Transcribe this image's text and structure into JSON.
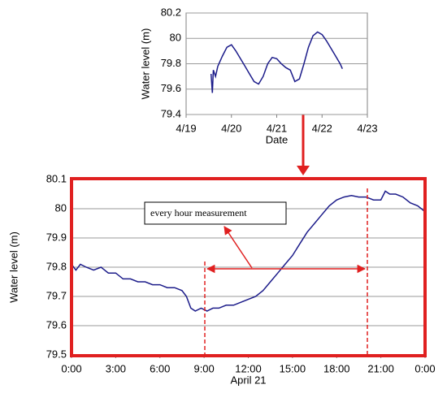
{
  "chart_data": [
    {
      "type": "line",
      "ylabel": "Water level (m)",
      "xlabel": "Date",
      "color": "#1c1c8a",
      "grid": true,
      "x": [
        19.55,
        19.58,
        19.6,
        19.65,
        19.7,
        19.8,
        19.9,
        20.0,
        20.1,
        20.2,
        20.3,
        20.4,
        20.5,
        20.6,
        20.7,
        20.8,
        20.9,
        21.0,
        21.1,
        21.2,
        21.3,
        21.4,
        21.5,
        21.6,
        21.7,
        21.8,
        21.9,
        22.0,
        22.1,
        22.2,
        22.3,
        22.4,
        22.45
      ],
      "values": [
        79.72,
        79.57,
        79.75,
        79.7,
        79.78,
        79.86,
        79.93,
        79.95,
        79.9,
        79.84,
        79.78,
        79.72,
        79.66,
        79.64,
        79.7,
        79.8,
        79.85,
        79.84,
        79.8,
        79.77,
        79.75,
        79.66,
        79.68,
        79.8,
        79.93,
        80.02,
        80.05,
        80.03,
        79.98,
        79.92,
        79.86,
        79.8,
        79.76
      ],
      "xlim": [
        19,
        23
      ],
      "xticks": [
        {
          "value": 19,
          "label": "4/19"
        },
        {
          "value": 20,
          "label": "4/20"
        },
        {
          "value": 21,
          "label": "4/21"
        },
        {
          "value": 22,
          "label": "4/22"
        },
        {
          "value": 23,
          "label": "4/23"
        }
      ],
      "ylim": [
        79.4,
        80.2
      ],
      "yticks": [
        79.4,
        79.6,
        79.8,
        80,
        80.2
      ]
    },
    {
      "type": "line",
      "ylabel": "Water level (m)",
      "xlabel": "April 21",
      "color": "#1c1c8a",
      "grid": true,
      "annotation": "every hour measurement",
      "x": [
        0,
        0.3,
        0.6,
        1,
        1.5,
        2,
        2.5,
        3,
        3.5,
        4,
        4.5,
        5,
        5.5,
        6,
        6.5,
        7,
        7.5,
        7.8,
        8.1,
        8.4,
        8.8,
        9.2,
        9.6,
        10,
        10.5,
        11,
        11.5,
        12,
        12.5,
        13,
        13.5,
        14,
        14.5,
        15,
        15.5,
        16,
        16.5,
        17,
        17.5,
        18,
        18.5,
        19,
        19.5,
        20,
        20.5,
        21,
        21.3,
        21.6,
        22,
        22.5,
        23,
        23.5,
        24
      ],
      "values": [
        79.81,
        79.79,
        79.81,
        79.8,
        79.79,
        79.8,
        79.78,
        79.78,
        79.76,
        79.76,
        79.75,
        79.75,
        79.74,
        79.74,
        79.73,
        79.73,
        79.72,
        79.7,
        79.66,
        79.65,
        79.66,
        79.65,
        79.66,
        79.66,
        79.67,
        79.67,
        79.68,
        79.69,
        79.7,
        79.72,
        79.75,
        79.78,
        79.81,
        79.84,
        79.88,
        79.92,
        79.95,
        79.98,
        80.01,
        80.03,
        80.04,
        80.045,
        80.04,
        80.04,
        80.03,
        80.03,
        80.06,
        80.05,
        80.05,
        80.04,
        80.02,
        80.01,
        79.99
      ],
      "xlim": [
        0,
        24
      ],
      "xticks": [
        {
          "value": 0,
          "label": "0:00"
        },
        {
          "value": 3,
          "label": "3:00"
        },
        {
          "value": 6,
          "label": "6:00"
        },
        {
          "value": 9,
          "label": "9:00"
        },
        {
          "value": 12,
          "label": "12:00"
        },
        {
          "value": 15,
          "label": "15:00"
        },
        {
          "value": 18,
          "label": "18:00"
        },
        {
          "value": 21,
          "label": "21:00"
        },
        {
          "value": 24,
          "label": "0:00"
        }
      ],
      "ylim": [
        79.5,
        80.1
      ],
      "yticks": [
        79.5,
        79.6,
        79.7,
        79.8,
        79.9,
        80,
        80.1
      ]
    }
  ]
}
